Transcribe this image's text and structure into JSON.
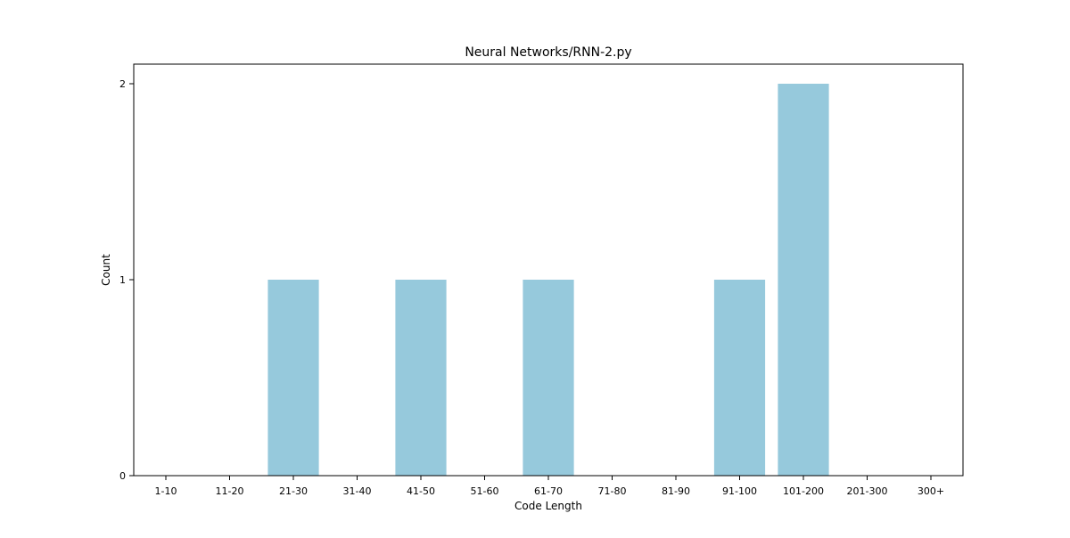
{
  "chart_data": {
    "type": "bar",
    "title": "Neural Networks/RNN-2.py",
    "xlabel": "Code Length",
    "ylabel": "Count",
    "categories": [
      "1-10",
      "11-20",
      "21-30",
      "31-40",
      "41-50",
      "51-60",
      "61-70",
      "71-80",
      "81-90",
      "91-100",
      "101-200",
      "201-300",
      "300+"
    ],
    "values": [
      0,
      0,
      1,
      0,
      1,
      0,
      1,
      0,
      0,
      1,
      2,
      0,
      0
    ],
    "ylim": [
      0,
      2.1
    ],
    "yticks": [
      0,
      1,
      2
    ],
    "bar_color": "#96c9dc",
    "grid": false,
    "legend": "none"
  }
}
